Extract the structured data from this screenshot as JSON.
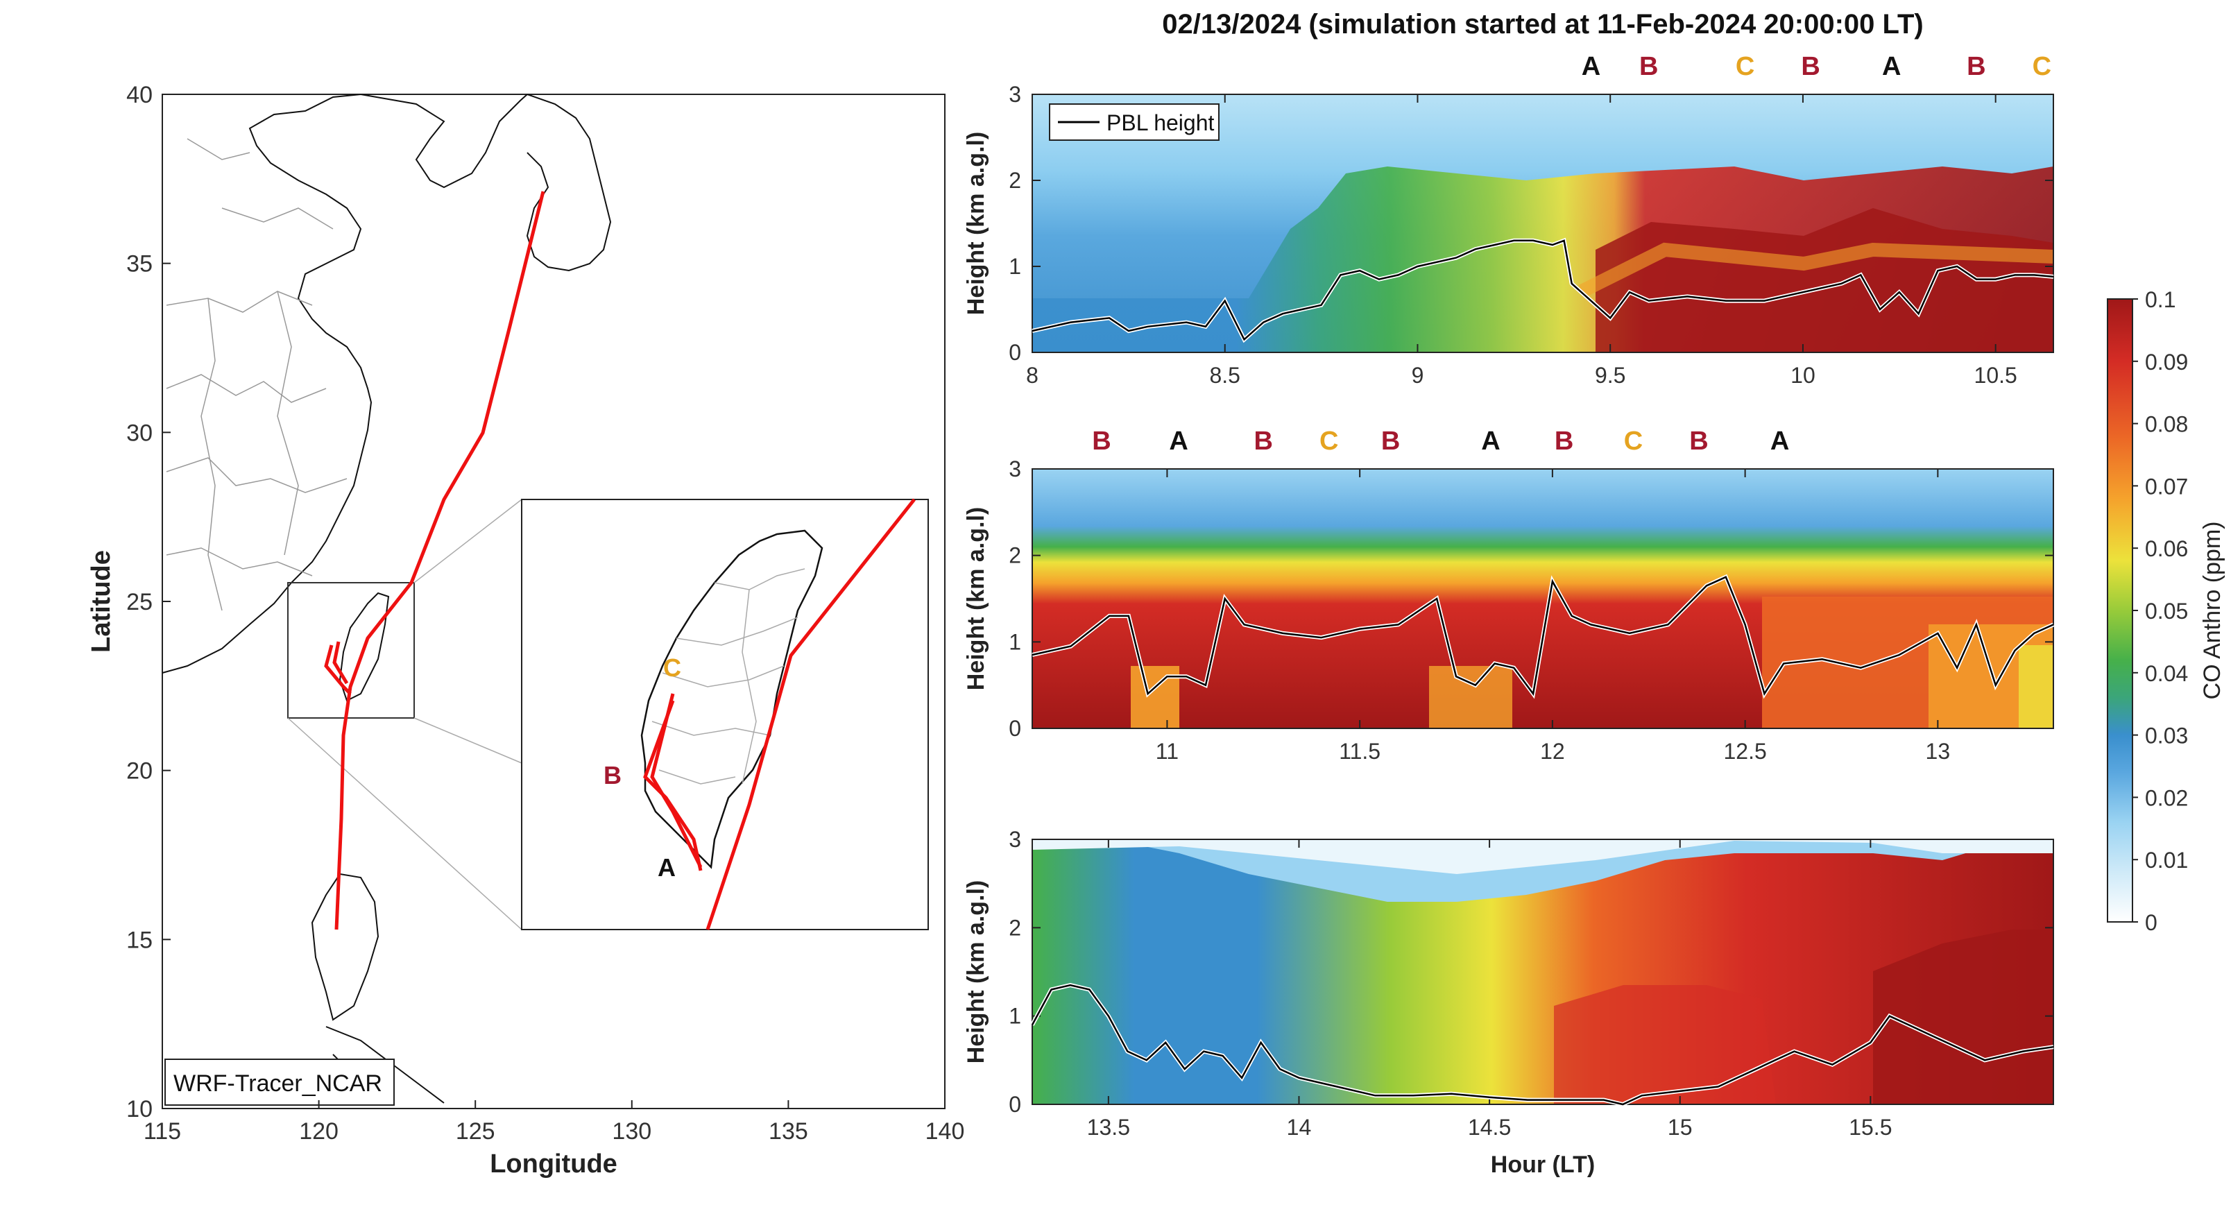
{
  "figure": {
    "title": "02/13/2024 (simulation started at 11-Feb-2024 20:00:00 LT)"
  },
  "map": {
    "xlabel": "Longitude",
    "ylabel": "Latitude",
    "x_ticks": [
      "115",
      "120",
      "125",
      "130",
      "135",
      "140"
    ],
    "y_ticks": [
      "40",
      "35",
      "30",
      "25",
      "20",
      "15",
      "10"
    ],
    "model_label": "WRF-Tracer_NCAR",
    "inset_labels": {
      "A": "A",
      "B": "B",
      "C": "C"
    }
  },
  "colorbar": {
    "label": "CO Anthro (ppm)",
    "ticks": [
      "0.1",
      "0.09",
      "0.08",
      "0.07",
      "0.06",
      "0.05",
      "0.04",
      "0.03",
      "0.02",
      "0.01",
      "0"
    ],
    "colors": [
      "#ffffff",
      "#b9e3f5",
      "#8fcdf0",
      "#4fa0dc",
      "#2f8ac4",
      "#3aad52",
      "#58bb3c",
      "#a6d039",
      "#eee23a",
      "#f6a92d",
      "#ee6b26",
      "#d92b25",
      "#a41a1a"
    ]
  },
  "chart_data": [
    {
      "type": "heatmap",
      "title": "",
      "xlabel": "",
      "ylabel": "Height (km a.g.l)",
      "xlim": [
        8,
        10.65
      ],
      "ylim": [
        0,
        3
      ],
      "x_ticks": [
        "8",
        "8.5",
        "9",
        "9.5",
        "10",
        "10.5"
      ],
      "y_ticks": [
        "0",
        "1",
        "2",
        "3"
      ],
      "legend": "top-left",
      "series": [
        {
          "name": "PBL height",
          "x": [
            8.0,
            8.1,
            8.2,
            8.25,
            8.3,
            8.4,
            8.45,
            8.5,
            8.55,
            8.6,
            8.65,
            8.7,
            8.75,
            8.8,
            8.85,
            8.9,
            8.95,
            9.0,
            9.05,
            9.1,
            9.15,
            9.2,
            9.25,
            9.3,
            9.35,
            9.38,
            9.4,
            9.45,
            9.5,
            9.55,
            9.6,
            9.7,
            9.8,
            9.9,
            10.0,
            10.1,
            10.15,
            10.2,
            10.25,
            10.3,
            10.35,
            10.4,
            10.45,
            10.5,
            10.55,
            10.6,
            10.65
          ],
          "y": [
            0.25,
            0.35,
            0.4,
            0.25,
            0.3,
            0.35,
            0.3,
            0.6,
            0.15,
            0.35,
            0.45,
            0.5,
            0.55,
            0.9,
            0.95,
            0.85,
            0.9,
            1.0,
            1.05,
            1.1,
            1.2,
            1.25,
            1.3,
            1.3,
            1.25,
            1.3,
            0.8,
            0.6,
            0.4,
            0.7,
            0.6,
            0.65,
            0.6,
            0.6,
            0.7,
            0.8,
            0.9,
            0.5,
            0.7,
            0.45,
            0.95,
            1.0,
            0.85,
            0.85,
            0.9,
            0.9,
            0.88
          ]
        }
      ],
      "markers": [
        {
          "label": "A",
          "x": 9.45
        },
        {
          "label": "B",
          "x": 9.6
        },
        {
          "label": "C",
          "x": 9.85
        },
        {
          "label": "B",
          "x": 10.02
        },
        {
          "label": "A",
          "x": 10.23
        },
        {
          "label": "B",
          "x": 10.45
        },
        {
          "label": "C",
          "x": 10.62
        }
      ]
    },
    {
      "type": "heatmap",
      "title": "",
      "xlabel": "",
      "ylabel": "Height (km a.g.l)",
      "xlim": [
        10.65,
        13.3
      ],
      "ylim": [
        0,
        3
      ],
      "x_ticks": [
        "11",
        "11.5",
        "12",
        "12.5",
        "13"
      ],
      "y_ticks": [
        "0",
        "1",
        "2",
        "3"
      ],
      "series": [
        {
          "name": "PBL height",
          "x": [
            10.65,
            10.75,
            10.85,
            10.9,
            10.95,
            11.0,
            11.05,
            11.1,
            11.15,
            11.2,
            11.3,
            11.4,
            11.5,
            11.6,
            11.7,
            11.75,
            11.8,
            11.85,
            11.9,
            11.95,
            12.0,
            12.05,
            12.1,
            12.2,
            12.3,
            12.4,
            12.45,
            12.5,
            12.55,
            12.6,
            12.7,
            12.8,
            12.9,
            13.0,
            13.05,
            13.1,
            13.15,
            13.2,
            13.25,
            13.3
          ],
          "y": [
            0.85,
            0.95,
            1.3,
            1.3,
            0.4,
            0.6,
            0.6,
            0.5,
            1.5,
            1.2,
            1.1,
            1.05,
            1.15,
            1.2,
            1.5,
            0.6,
            0.5,
            0.75,
            0.7,
            0.4,
            1.7,
            1.3,
            1.2,
            1.1,
            1.2,
            1.65,
            1.75,
            1.2,
            0.4,
            0.75,
            0.8,
            0.7,
            0.85,
            1.1,
            0.7,
            1.2,
            0.5,
            0.9,
            1.1,
            1.2
          ]
        }
      ],
      "markers": [
        {
          "label": "B",
          "x": 10.83
        },
        {
          "label": "A",
          "x": 11.03
        },
        {
          "label": "B",
          "x": 11.25
        },
        {
          "label": "C",
          "x": 11.42
        },
        {
          "label": "B",
          "x": 11.58
        },
        {
          "label": "A",
          "x": 11.84
        },
        {
          "label": "B",
          "x": 12.03
        },
        {
          "label": "C",
          "x": 12.21
        },
        {
          "label": "B",
          "x": 12.38
        },
        {
          "label": "A",
          "x": 12.59
        }
      ]
    },
    {
      "type": "heatmap",
      "title": "",
      "xlabel": "Hour (LT)",
      "ylabel": "Height (km a.g.l)",
      "xlim": [
        13.3,
        15.98
      ],
      "ylim": [
        0,
        3
      ],
      "x_ticks": [
        "13.5",
        "14",
        "14.5",
        "15",
        "15.5"
      ],
      "y_ticks": [
        "0",
        "1",
        "2",
        "3"
      ],
      "series": [
        {
          "name": "PBL height",
          "x": [
            13.3,
            13.35,
            13.4,
            13.45,
            13.5,
            13.55,
            13.6,
            13.65,
            13.7,
            13.75,
            13.8,
            13.85,
            13.9,
            13.95,
            14.0,
            14.1,
            14.2,
            14.3,
            14.4,
            14.5,
            14.6,
            14.7,
            14.8,
            14.85,
            14.9,
            15.0,
            15.1,
            15.15,
            15.2,
            15.25,
            15.3,
            15.4,
            15.5,
            15.55,
            15.6,
            15.7,
            15.8,
            15.9,
            15.98
          ],
          "y": [
            0.9,
            1.3,
            1.35,
            1.3,
            1.0,
            0.6,
            0.5,
            0.7,
            0.4,
            0.6,
            0.55,
            0.3,
            0.7,
            0.4,
            0.3,
            0.2,
            0.1,
            0.1,
            0.12,
            0.08,
            0.05,
            0.05,
            0.05,
            0.0,
            0.1,
            0.15,
            0.2,
            0.3,
            0.4,
            0.5,
            0.6,
            0.45,
            0.7,
            1.0,
            0.9,
            0.7,
            0.5,
            0.6,
            0.65
          ]
        }
      ]
    }
  ]
}
